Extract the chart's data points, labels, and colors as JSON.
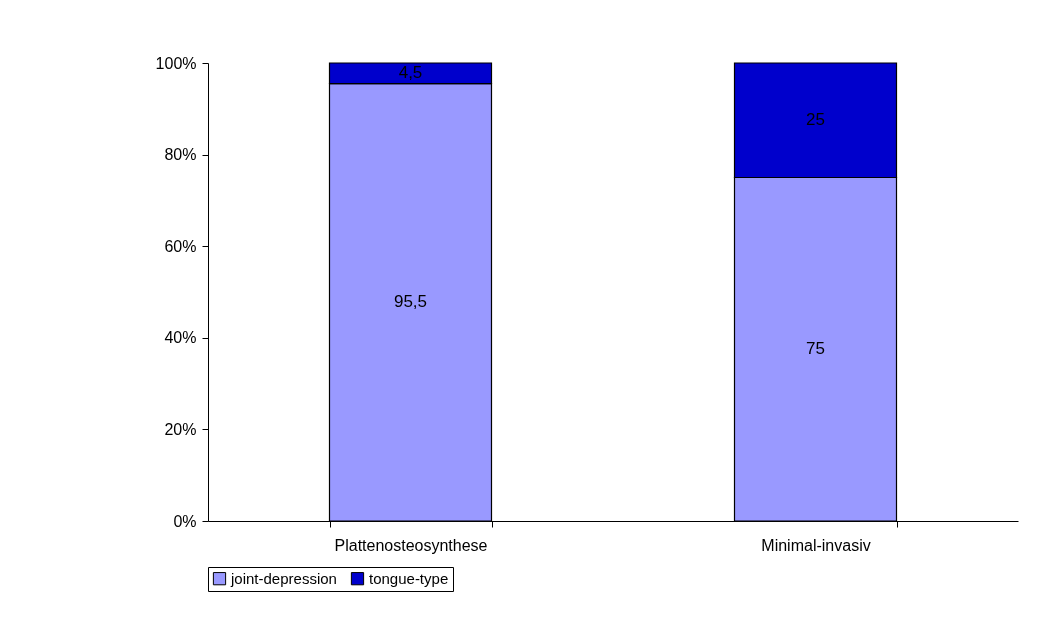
{
  "chart_data": {
    "type": "bar",
    "stacked": true,
    "categories": [
      "Plattenosteosynthese",
      "Minimal-invasiv"
    ],
    "series": [
      {
        "name": "joint-depression",
        "color": "#9999ff",
        "values": [
          95.5,
          75
        ],
        "value_labels": [
          "95,5",
          "75"
        ]
      },
      {
        "name": "tongue-type",
        "color": "#0000cc",
        "values": [
          4.5,
          25
        ],
        "value_labels": [
          "4,5",
          "25"
        ]
      }
    ],
    "ylim": [
      0,
      100
    ],
    "yticks": [
      {
        "value": 0,
        "label": "0%"
      },
      {
        "value": 20,
        "label": "20%"
      },
      {
        "value": 40,
        "label": "40%"
      },
      {
        "value": 60,
        "label": "60%"
      },
      {
        "value": 80,
        "label": "80%"
      },
      {
        "value": 100,
        "label": "100%"
      }
    ],
    "grid": false,
    "legend": "bottom"
  }
}
